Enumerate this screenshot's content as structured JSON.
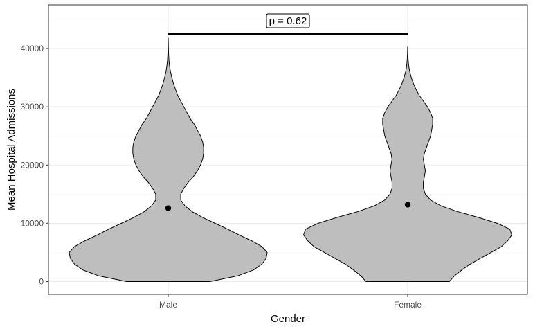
{
  "chart_data": {
    "type": "violin",
    "xlabel": "Gender",
    "ylabel": "Mean Hospital Admissions",
    "ylim": [
      -2200,
      47500
    ],
    "y_ticks": [
      0,
      10000,
      20000,
      30000,
      40000
    ],
    "y_tick_labels": [
      "0",
      "10000",
      "20000",
      "30000",
      "40000"
    ],
    "categories": [
      "Male",
      "Female"
    ],
    "fill_color": "#bebebe",
    "outline_color": "#000000",
    "grid": true,
    "series": [
      {
        "category": "Male",
        "mean": 12600,
        "profile": [
          [
            0,
            0.4
          ],
          [
            1000,
            0.67
          ],
          [
            2000,
            0.82
          ],
          [
            3000,
            0.9
          ],
          [
            4000,
            0.94
          ],
          [
            5000,
            0.95
          ],
          [
            6000,
            0.9
          ],
          [
            7000,
            0.8
          ],
          [
            8000,
            0.68
          ],
          [
            9000,
            0.57
          ],
          [
            10000,
            0.45
          ],
          [
            11000,
            0.33
          ],
          [
            12000,
            0.23
          ],
          [
            13000,
            0.16
          ],
          [
            14000,
            0.12
          ],
          [
            15000,
            0.12
          ],
          [
            16000,
            0.15
          ],
          [
            17000,
            0.19
          ],
          [
            18000,
            0.24
          ],
          [
            19000,
            0.28
          ],
          [
            20000,
            0.31
          ],
          [
            21000,
            0.33
          ],
          [
            22000,
            0.34
          ],
          [
            23000,
            0.34
          ],
          [
            24000,
            0.33
          ],
          [
            25000,
            0.31
          ],
          [
            26000,
            0.28
          ],
          [
            27000,
            0.25
          ],
          [
            28000,
            0.21
          ],
          [
            29000,
            0.18
          ],
          [
            30000,
            0.15
          ],
          [
            31000,
            0.12
          ],
          [
            32000,
            0.09
          ],
          [
            33000,
            0.07
          ],
          [
            34000,
            0.05
          ],
          [
            35000,
            0.035
          ],
          [
            36000,
            0.022
          ],
          [
            37000,
            0.013
          ],
          [
            38000,
            0.007
          ],
          [
            39000,
            0.004
          ],
          [
            40000,
            0.002
          ],
          [
            41000,
            0.001
          ],
          [
            41800,
            0
          ]
        ]
      },
      {
        "category": "Female",
        "mean": 13200,
        "profile": [
          [
            0,
            0.4
          ],
          [
            1000,
            0.45
          ],
          [
            2000,
            0.52
          ],
          [
            3000,
            0.6
          ],
          [
            4000,
            0.7
          ],
          [
            5000,
            0.8
          ],
          [
            6000,
            0.9
          ],
          [
            7000,
            0.96
          ],
          [
            8000,
            1.0
          ],
          [
            9000,
            0.98
          ],
          [
            10000,
            0.86
          ],
          [
            11000,
            0.68
          ],
          [
            12000,
            0.48
          ],
          [
            13000,
            0.32
          ],
          [
            14000,
            0.22
          ],
          [
            15000,
            0.17
          ],
          [
            16000,
            0.15
          ],
          [
            17000,
            0.15
          ],
          [
            18000,
            0.16
          ],
          [
            19000,
            0.17
          ],
          [
            20000,
            0.16
          ],
          [
            21000,
            0.15
          ],
          [
            22000,
            0.16
          ],
          [
            23000,
            0.18
          ],
          [
            24000,
            0.2
          ],
          [
            25000,
            0.22
          ],
          [
            26000,
            0.23
          ],
          [
            27000,
            0.24
          ],
          [
            28000,
            0.24
          ],
          [
            29000,
            0.22
          ],
          [
            30000,
            0.19
          ],
          [
            31000,
            0.15
          ],
          [
            32000,
            0.11
          ],
          [
            33000,
            0.08
          ],
          [
            34000,
            0.055
          ],
          [
            35000,
            0.035
          ],
          [
            36000,
            0.02
          ],
          [
            37000,
            0.01
          ],
          [
            38000,
            0.005
          ],
          [
            39000,
            0.002
          ],
          [
            40300,
            0
          ]
        ]
      }
    ],
    "annotation": {
      "text": "p = 0.62",
      "from": "Male",
      "to": "Female",
      "y": 42500
    }
  }
}
